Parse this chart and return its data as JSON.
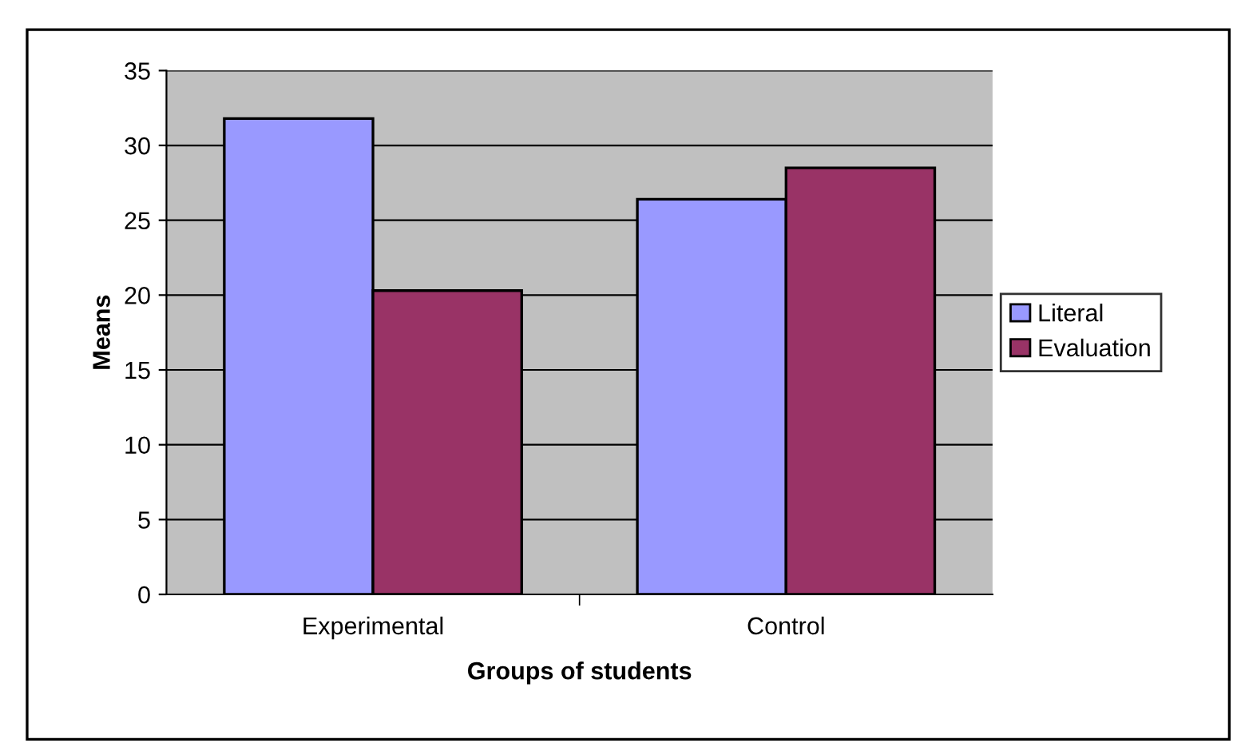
{
  "chart_data": {
    "type": "bar",
    "xlabel": "Groups of students",
    "ylabel": "Means",
    "categories": [
      "Experimental",
      "Control"
    ],
    "series": [
      {
        "name": "Literal",
        "color": "#9999ff",
        "values": [
          31.8,
          26.4
        ]
      },
      {
        "name": "Evaluation",
        "color": "#993366",
        "values": [
          20.3,
          28.5
        ]
      }
    ],
    "ylim": [
      0,
      35
    ],
    "yticks": [
      0,
      5,
      10,
      15,
      20,
      25,
      30,
      35
    ],
    "grid": "y",
    "legend": "right"
  }
}
